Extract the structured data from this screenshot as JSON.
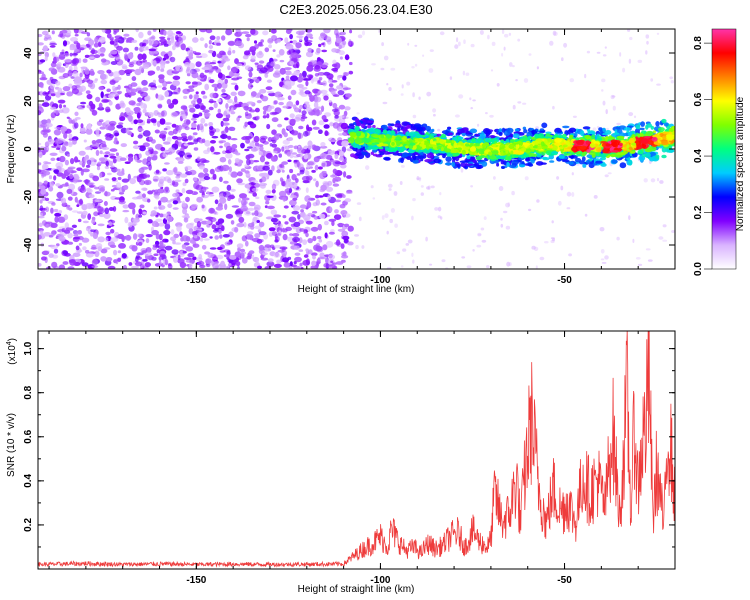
{
  "title": "C2E3.2025.056.23.04.E30",
  "chart_data": [
    {
      "type": "heatmap",
      "xlabel": "Height of straight line (km)",
      "ylabel": "Frequency (Hz)",
      "xlim": [
        -193,
        -20
      ],
      "ylim": [
        -50,
        50
      ],
      "xticks": [
        -150,
        -100,
        -50
      ],
      "yticks": [
        -40,
        -20,
        0,
        20,
        40
      ],
      "colorbar": {
        "label": "Normalized spectral amplitude",
        "range": [
          0.0,
          0.85
        ],
        "ticks": [
          0.0,
          0.2,
          0.4,
          0.6,
          0.8
        ],
        "tick_labels": [
          "0.0",
          "0.2",
          "0.4",
          "0.6",
          "0.8"
        ],
        "colors": [
          "#ffffff",
          "#d9b3ff",
          "#8000ff",
          "#0000ff",
          "#00ccff",
          "#00ff80",
          "#80ff00",
          "#ffff00",
          "#ff8000",
          "#ff0000",
          "#ff33aa"
        ]
      },
      "regions": [
        {
          "x_range": [
            -193,
            -108
          ],
          "freq_range": [
            -50,
            50
          ],
          "amplitude_range": [
            0.0,
            0.1
          ]
        },
        {
          "x_range": [
            -108,
            -20
          ],
          "freq_range": [
            -8,
            8
          ],
          "amplitude_range": [
            0.05,
            0.85
          ]
        }
      ],
      "signal_ridge": {
        "x": [
          -108,
          -95,
          -85,
          -75,
          -65,
          -55,
          -45,
          -35,
          -25,
          -20
        ],
        "freq": [
          5,
          3,
          2,
          0,
          0,
          2,
          1,
          1,
          4,
          5
        ]
      },
      "peak_amplitude_x": [
        -45,
        -37,
        -28
      ]
    },
    {
      "type": "line",
      "xlabel": "Height of straight line (km)",
      "ylabel": "SNR (10 * v/v)",
      "y_scale_label": "(x10",
      "y_scale_exponent": "4",
      "xlim": [
        -193,
        -20
      ],
      "ylim": [
        0,
        10800
      ],
      "xticks": [
        -150,
        -100,
        -50
      ],
      "yticks": [
        2000,
        4000,
        6000,
        8000,
        10000
      ],
      "ytick_labels": [
        "0.2",
        "0.4",
        "0.6",
        "0.8",
        "1.0"
      ],
      "series": [
        {
          "color": "#ee3b3b",
          "x": [
            -193,
            -180,
            -170,
            -160,
            -150,
            -140,
            -130,
            -120,
            -110,
            -106,
            -104,
            -102,
            -100,
            -98,
            -97,
            -95,
            -93,
            -91,
            -89,
            -87,
            -85,
            -83,
            -81,
            -79,
            -77,
            -75,
            -73,
            -71,
            -70,
            -69,
            -67,
            -65,
            -63,
            -62,
            -61,
            -59,
            -57,
            -55,
            -54,
            -53,
            -51,
            -49,
            -47,
            -45,
            -43,
            -41,
            -39,
            -37,
            -35,
            -33,
            -32,
            -31,
            -30,
            -29,
            -28,
            -27,
            -26,
            -25,
            -24,
            -23,
            -22,
            -21,
            -20
          ],
          "y": [
            250,
            300,
            250,
            280,
            250,
            270,
            250,
            260,
            280,
            900,
            1200,
            1400,
            1800,
            1200,
            2200,
            1500,
            1000,
            1200,
            900,
            1400,
            1100,
            1300,
            1800,
            2000,
            1200,
            2100,
            1500,
            1200,
            1600,
            4200,
            2600,
            3000,
            5000,
            2500,
            4800,
            8300,
            4500,
            2500,
            3500,
            4400,
            3200,
            3700,
            2500,
            5200,
            4100,
            5000,
            3400,
            7800,
            2800,
            9500,
            3000,
            8000,
            4400,
            6800,
            7900,
            10700,
            2600,
            5500,
            4100,
            2200,
            7800,
            6300,
            3600
          ]
        }
      ]
    }
  ]
}
